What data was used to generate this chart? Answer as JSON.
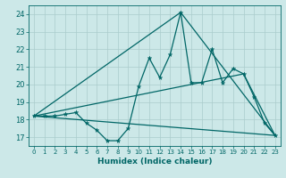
{
  "xlabel": "Humidex (Indice chaleur)",
  "ylabel": "",
  "background_color": "#cce8e8",
  "grid_color": "#aacccc",
  "line_color": "#006666",
  "xlim": [
    -0.5,
    23.5
  ],
  "ylim": [
    16.5,
    24.5
  ],
  "xticks": [
    0,
    1,
    2,
    3,
    4,
    5,
    6,
    7,
    8,
    9,
    10,
    11,
    12,
    13,
    14,
    15,
    16,
    17,
    18,
    19,
    20,
    21,
    22,
    23
  ],
  "yticks": [
    17,
    18,
    19,
    20,
    21,
    22,
    23,
    24
  ],
  "series1_x": [
    0,
    1,
    2,
    3,
    4,
    5,
    6,
    7,
    8,
    9,
    10,
    11,
    12,
    13,
    14,
    15,
    16,
    17,
    18,
    19,
    20,
    21,
    22,
    23
  ],
  "series1_y": [
    18.2,
    18.2,
    18.2,
    18.3,
    18.4,
    17.8,
    17.4,
    16.8,
    16.8,
    17.5,
    19.9,
    21.5,
    20.4,
    21.7,
    24.1,
    20.1,
    20.1,
    22.0,
    20.1,
    20.9,
    20.6,
    19.3,
    17.8,
    17.1
  ],
  "series2_x": [
    0,
    14,
    23
  ],
  "series2_y": [
    18.2,
    24.1,
    17.1
  ],
  "series3_x": [
    0,
    20,
    23
  ],
  "series3_y": [
    18.2,
    20.6,
    17.1
  ],
  "series4_x": [
    0,
    23
  ],
  "series4_y": [
    18.2,
    17.1
  ]
}
